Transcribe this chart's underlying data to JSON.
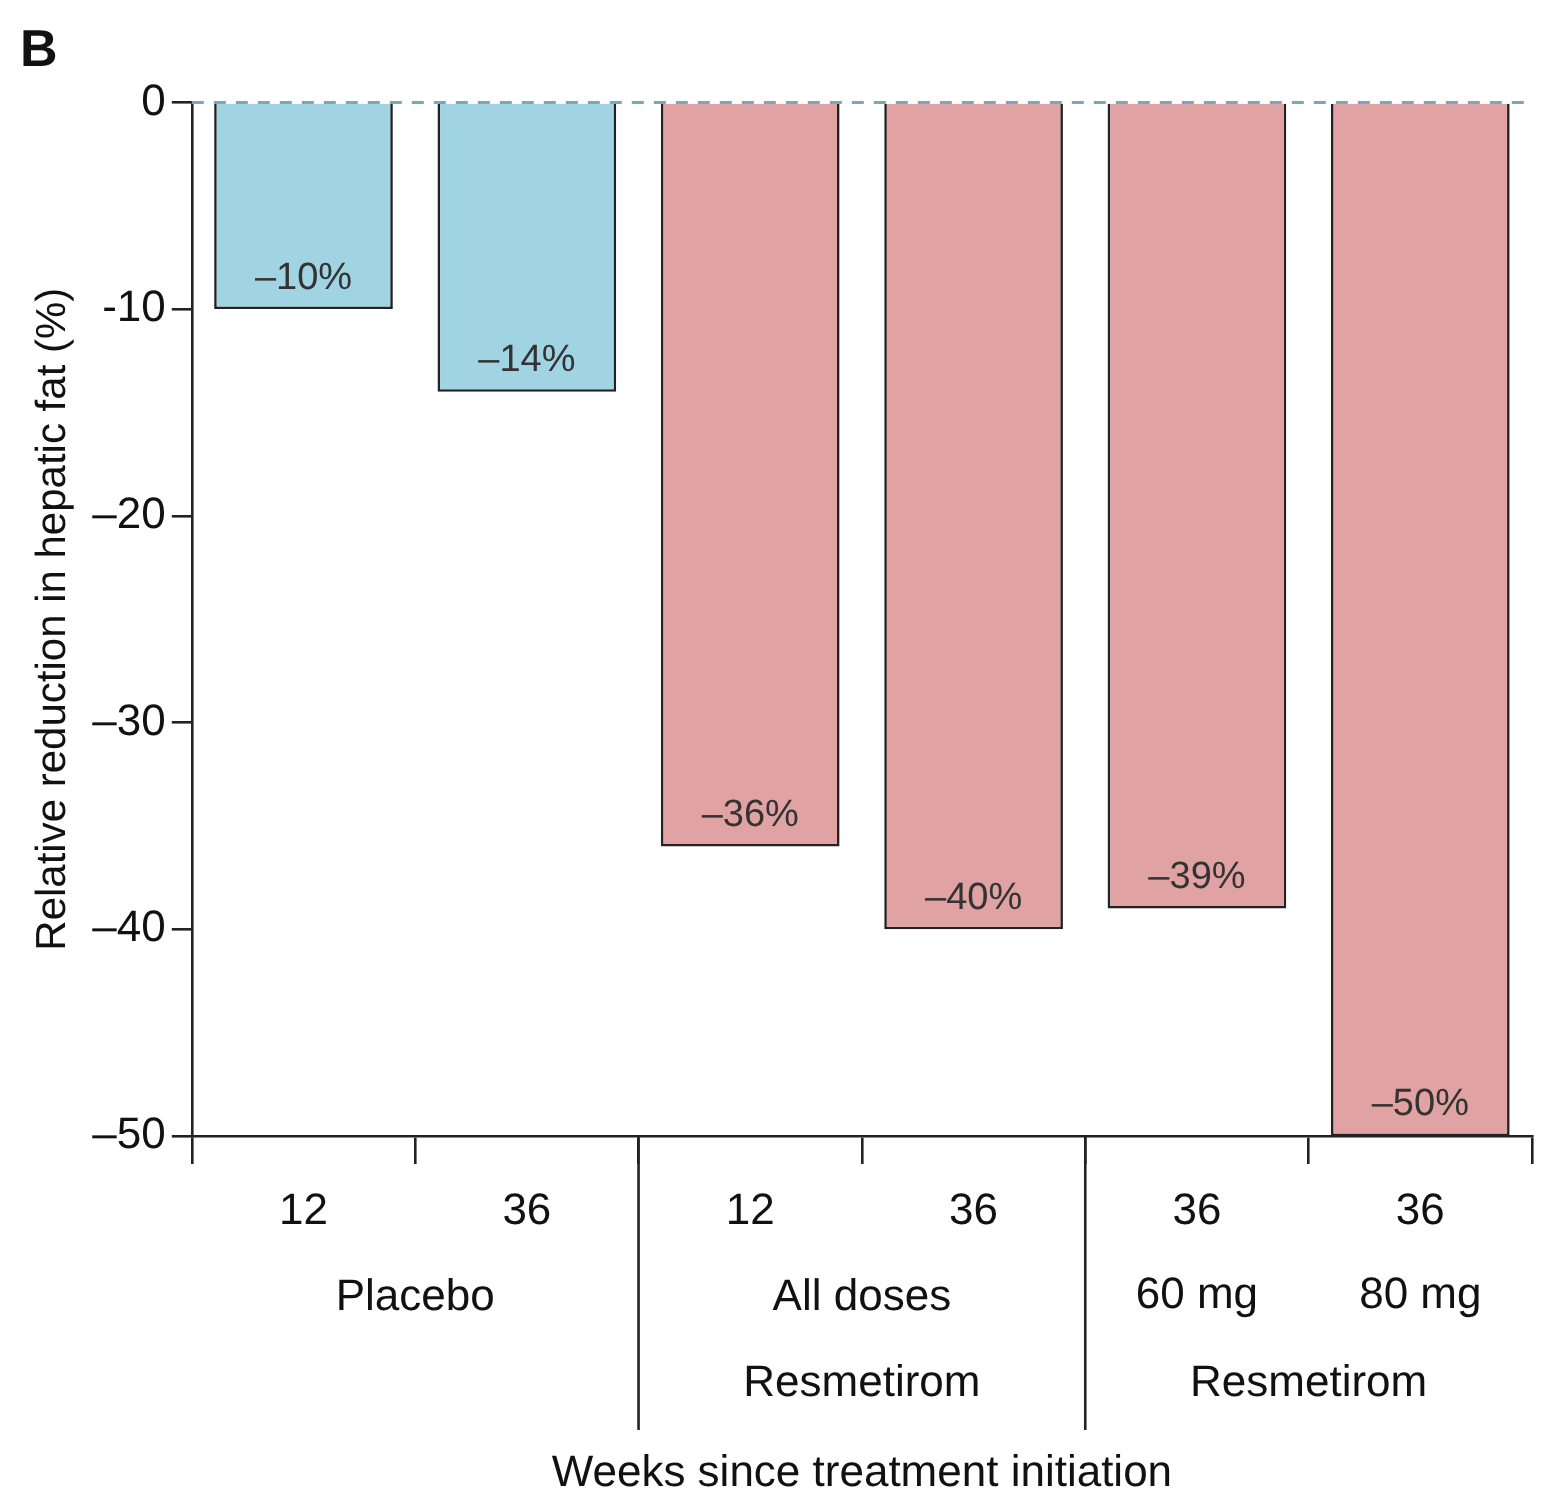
{
  "chart_data": {
    "type": "bar",
    "title": "B",
    "ylabel": "Relative reduction in hepatic fat (%)",
    "xlabel": "Weeks since treatment initiation",
    "categories": [
      "12",
      "36",
      "12",
      "36",
      "36\n60 mg",
      "36\n80 mg"
    ],
    "values": [
      -10,
      -14,
      -36,
      -40,
      -39,
      -50
    ],
    "colors": [
      "#a0d4e2",
      "#a0d4e2",
      "#e0a2a2",
      "#e0a2a2",
      "#e0a2a2",
      "#e0a2a2"
    ],
    "value_labels": [
      "–10%",
      "–14%",
      "–36%",
      "–40%",
      "–39%",
      "–50%"
    ],
    "annotations": [
      "Placebo",
      "All doses\nResmetirom",
      "Resmetirom"
    ],
    "ylim": [
      -50,
      0
    ],
    "yticks": [
      {
        "value": 0,
        "label": "0"
      },
      {
        "value": -10,
        "label": "-10"
      },
      {
        "value": -20,
        "label": "–20"
      },
      {
        "value": -30,
        "label": "–30"
      },
      {
        "value": -40,
        "label": "–40"
      },
      {
        "value": -50,
        "label": "–50"
      }
    ],
    "ref_lines": [
      {
        "axis": "y",
        "value": 0,
        "label": null,
        "color": "#7aa8b8",
        "line_style": "dashed"
      }
    ],
    "grid": false,
    "legend": false
  }
}
